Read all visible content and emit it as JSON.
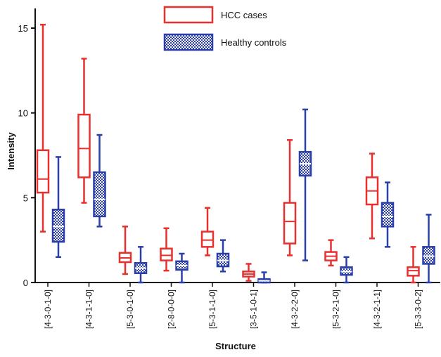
{
  "chart_data": {
    "type": "boxplot",
    "xlabel": "Structure",
    "ylabel": "Intensity",
    "ylim": [
      0,
      16
    ],
    "yticks": [
      0,
      5,
      10,
      15
    ],
    "grid": false,
    "legend_position": "top-center",
    "categories": [
      "[4-3-0-1-0]",
      "[4-3-1-1-0]",
      "[5-3-0-1-0]",
      "[2-8-0-0-0]",
      "[5-3-1-1-0]",
      "[3-5-1-0-1]",
      "[4-3-2-2-0]",
      "[5-3-2-1-0]",
      "[4-3-2-1-1]",
      "[5-3-3-0-2]"
    ],
    "series": [
      {
        "name": "HCC cases",
        "color": "#e8302e",
        "style": "outline",
        "boxes": [
          {
            "min": 3.0,
            "q1": 5.3,
            "median": 6.1,
            "q3": 7.8,
            "max": 15.2
          },
          {
            "min": 4.7,
            "q1": 6.2,
            "median": 7.9,
            "q3": 9.9,
            "max": 13.2
          },
          {
            "min": 0.5,
            "q1": 1.2,
            "median": 1.45,
            "q3": 1.75,
            "max": 3.3
          },
          {
            "min": 0.7,
            "q1": 1.3,
            "median": 1.6,
            "q3": 2.0,
            "max": 3.2
          },
          {
            "min": 1.6,
            "q1": 2.1,
            "median": 2.5,
            "q3": 3.0,
            "max": 4.4
          },
          {
            "min": 0.1,
            "q1": 0.35,
            "median": 0.5,
            "q3": 0.65,
            "max": 1.1
          },
          {
            "min": 1.6,
            "q1": 2.3,
            "median": 3.6,
            "q3": 4.7,
            "max": 8.4
          },
          {
            "min": 1.0,
            "q1": 1.3,
            "median": 1.55,
            "q3": 1.8,
            "max": 2.5
          },
          {
            "min": 2.6,
            "q1": 4.6,
            "median": 5.4,
            "q3": 6.2,
            "max": 7.6
          },
          {
            "min": 0.0,
            "q1": 0.4,
            "median": 0.7,
            "q3": 0.9,
            "max": 2.1
          }
        ]
      },
      {
        "name": "Healthy controls",
        "color": "#2a3fa8",
        "style": "checkered",
        "boxes": [
          {
            "min": 1.5,
            "q1": 2.4,
            "median": 3.3,
            "q3": 4.3,
            "max": 7.4
          },
          {
            "min": 3.3,
            "q1": 3.9,
            "median": 4.9,
            "q3": 6.5,
            "max": 8.7
          },
          {
            "min": 0.0,
            "q1": 0.55,
            "median": 0.85,
            "q3": 1.15,
            "max": 2.1
          },
          {
            "min": 0.0,
            "q1": 0.75,
            "median": 1.0,
            "q3": 1.25,
            "max": 1.7
          },
          {
            "min": 0.65,
            "q1": 0.95,
            "median": 1.3,
            "q3": 1.7,
            "max": 2.5
          },
          {
            "min": 0.0,
            "q1": 0.0,
            "median": 0.1,
            "q3": 0.2,
            "max": 0.6
          },
          {
            "min": 1.3,
            "q1": 6.3,
            "median": 7.0,
            "q3": 7.7,
            "max": 10.2
          },
          {
            "min": 0.0,
            "q1": 0.45,
            "median": 0.65,
            "q3": 0.9,
            "max": 1.5
          },
          {
            "min": 2.1,
            "q1": 3.3,
            "median": 3.9,
            "q3": 4.7,
            "max": 5.9
          },
          {
            "min": 0.0,
            "q1": 1.1,
            "median": 1.55,
            "q3": 2.1,
            "max": 4.0
          }
        ]
      }
    ]
  }
}
